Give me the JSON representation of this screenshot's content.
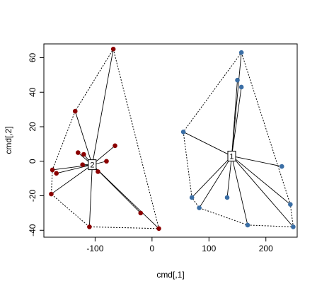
{
  "chart_data": {
    "type": "scatter",
    "xlabel": "cmd[,1]",
    "ylabel": "cmd[,2]",
    "xlim": [
      -190,
      255
    ],
    "ylim": [
      -44,
      68
    ],
    "xticks": [
      -100,
      0,
      100,
      200
    ],
    "yticks": [
      -40,
      -20,
      0,
      20,
      40,
      60
    ],
    "grid": false,
    "clusters": [
      {
        "label": "2",
        "color": "#8B0000",
        "center": [
          -105,
          -2
        ],
        "points": [
          [
            -175,
            -5
          ],
          [
            -168,
            -7
          ],
          [
            -135,
            29
          ],
          [
            -130,
            5
          ],
          [
            -122,
            -2
          ],
          [
            -120,
            4
          ],
          [
            -95,
            -6
          ],
          [
            -80,
            0
          ],
          [
            -65,
            9
          ],
          [
            -68,
            65
          ],
          [
            -20,
            -30
          ],
          [
            -110,
            -38
          ],
          [
            -177,
            -19
          ],
          [
            12,
            -39
          ]
        ],
        "hull": [
          [
            -68,
            65
          ],
          [
            12,
            -39
          ],
          [
            -110,
            -38
          ],
          [
            -177,
            -19
          ],
          [
            -175,
            -5
          ],
          [
            -135,
            29
          ]
        ]
      },
      {
        "label": "1",
        "color": "#3A6EA5",
        "center": [
          140,
          3
        ],
        "points": [
          [
            55,
            17
          ],
          [
            157,
            63
          ],
          [
            150,
            47
          ],
          [
            157,
            43
          ],
          [
            228,
            -3
          ],
          [
            243,
            -25
          ],
          [
            248,
            -38
          ],
          [
            168,
            -37
          ],
          [
            83,
            -27
          ],
          [
            70,
            -21
          ],
          [
            132,
            -21
          ]
        ],
        "hull": [
          [
            157,
            63
          ],
          [
            243,
            -25
          ],
          [
            248,
            -38
          ],
          [
            168,
            -37
          ],
          [
            83,
            -27
          ],
          [
            70,
            -21
          ],
          [
            55,
            17
          ]
        ]
      }
    ]
  }
}
